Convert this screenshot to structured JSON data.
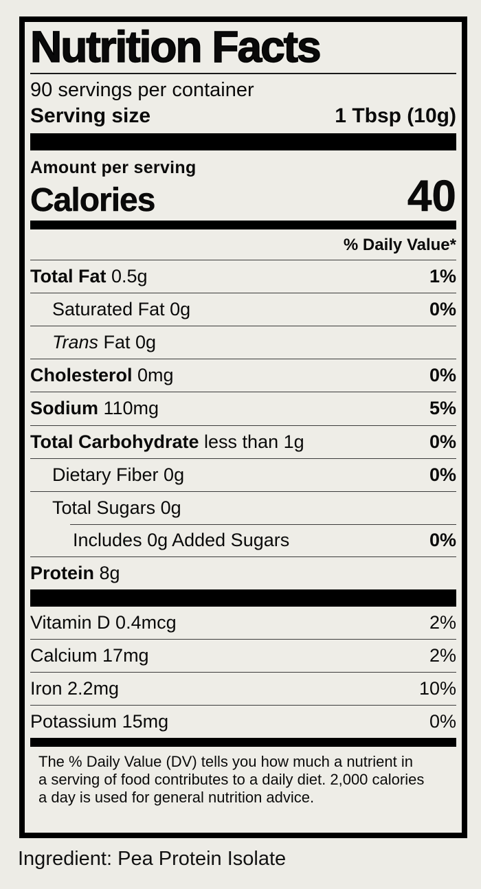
{
  "page": {
    "background": "#edece6",
    "ingredient_line": "Ingredient: Pea Protein Isolate"
  },
  "label": {
    "title": "Nutrition Facts",
    "servings_per_container": "90 servings per container",
    "serving_size": {
      "label": "Serving size",
      "value": "1 Tbsp (10g)"
    },
    "amount_per_serving": "Amount per serving",
    "calories": {
      "label": "Calories",
      "value": "40"
    },
    "daily_value_header": "% Daily Value*",
    "nutrients": [
      {
        "name": "Total Fat",
        "amount": "0.5g",
        "dv": "1%",
        "bold": true,
        "indent": 0,
        "dv_bold": true
      },
      {
        "name": "Saturated Fat",
        "amount": "0g",
        "dv": "0%",
        "bold": false,
        "indent": 1,
        "dv_bold": true
      },
      {
        "name": "Trans",
        "name2": " Fat",
        "amount": "0g",
        "dv": "",
        "bold": false,
        "indent": 1,
        "italic": true
      },
      {
        "name": "Cholesterol",
        "amount": "0mg",
        "dv": "0%",
        "bold": true,
        "indent": 0,
        "dv_bold": true
      },
      {
        "name": "Sodium",
        "amount": "110mg",
        "dv": "5%",
        "bold": true,
        "indent": 0,
        "dv_bold": true
      },
      {
        "name": "Total Carbohydrate",
        "amount": "less than 1g",
        "dv": "0%",
        "bold": true,
        "indent": 0,
        "dv_bold": true
      },
      {
        "name": "Dietary Fiber",
        "amount": "0g",
        "dv": "0%",
        "bold": false,
        "indent": 1,
        "dv_bold": true
      },
      {
        "name": "Total Sugars",
        "amount": "0g",
        "dv": "",
        "bold": false,
        "indent": 1
      },
      {
        "name": "Includes 0g Added Sugars",
        "amount": "",
        "dv": "0%",
        "bold": false,
        "indent": 2,
        "dv_bold": true,
        "rule": "partial"
      },
      {
        "name": "Protein",
        "amount": "8g",
        "dv": "",
        "bold": true,
        "indent": 0
      }
    ],
    "vitamins": [
      {
        "name": "Vitamin D",
        "amount": "0.4mcg",
        "dv": "2%"
      },
      {
        "name": "Calcium",
        "amount": "17mg",
        "dv": "2%"
      },
      {
        "name": "Iron",
        "amount": "2.2mg",
        "dv": "10%"
      },
      {
        "name": "Potassium",
        "amount": "15mg",
        "dv": "0%"
      }
    ],
    "footnote_lines": [
      "The % Daily Value (DV) tells you how much a nutrient in",
      "a serving of food contributes to a daily diet. 2,000 calories",
      "a day is used for general nutrition advice."
    ]
  }
}
